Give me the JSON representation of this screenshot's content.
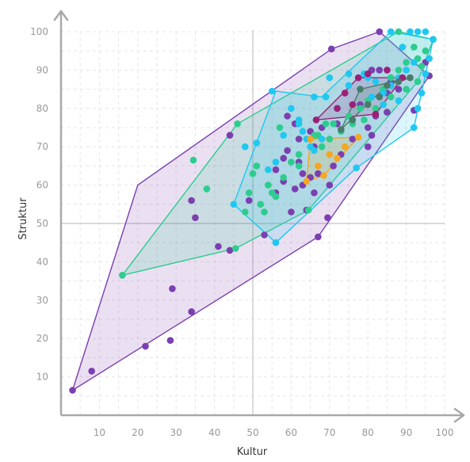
{
  "chart_data": {
    "type": "scatter",
    "title": "",
    "xlabel": "Kultur",
    "ylabel": "Struktur",
    "xlim": [
      0,
      100
    ],
    "ylim": [
      0,
      100
    ],
    "xticks": [
      10,
      20,
      30,
      40,
      50,
      60,
      70,
      80,
      90,
      100
    ],
    "yticks": [
      10,
      20,
      30,
      40,
      50,
      60,
      70,
      80,
      90,
      100
    ],
    "grid": true,
    "reference_lines": {
      "x": 50,
      "y": 50
    },
    "legend": "none",
    "series": [
      {
        "color": "#7b3fb0",
        "hull": [
          [
            3,
            6.5
          ],
          [
            67,
            46.5
          ],
          [
            96,
            88.5
          ],
          [
            83,
            100
          ],
          [
            70.5,
            95.5
          ],
          [
            20,
            60
          ]
        ],
        "points": [
          [
            3,
            6.5
          ],
          [
            8,
            11.5
          ],
          [
            22,
            18
          ],
          [
            28.5,
            19.5
          ],
          [
            34,
            27
          ],
          [
            29,
            33
          ],
          [
            34,
            56
          ],
          [
            35,
            51.5
          ],
          [
            41,
            44
          ],
          [
            44,
            43
          ],
          [
            44,
            73
          ],
          [
            53,
            47
          ],
          [
            67,
            46.5
          ],
          [
            69.5,
            51.5
          ],
          [
            64,
            53.5
          ],
          [
            60,
            53
          ],
          [
            56,
            58
          ],
          [
            56,
            64
          ],
          [
            58,
            67
          ],
          [
            59,
            69
          ],
          [
            62,
            72
          ],
          [
            65,
            74
          ],
          [
            61,
            76
          ],
          [
            59,
            78
          ],
          [
            63,
            60
          ],
          [
            66,
            58
          ],
          [
            70,
            60
          ],
          [
            71,
            65
          ],
          [
            73,
            68
          ],
          [
            76,
            72
          ],
          [
            80,
            70
          ],
          [
            81,
            73
          ],
          [
            85,
            79
          ],
          [
            92,
            79.5
          ],
          [
            96,
            88.5
          ],
          [
            95,
            92
          ],
          [
            86,
            87
          ],
          [
            78,
            81
          ],
          [
            72,
            76
          ],
          [
            68,
            75
          ],
          [
            66,
            70
          ],
          [
            62,
            66
          ],
          [
            65,
            62
          ],
          [
            67,
            63
          ],
          [
            70.5,
            95.5
          ],
          [
            83,
            100
          ],
          [
            88,
            85
          ],
          [
            83,
            90
          ],
          [
            81,
            90
          ],
          [
            85,
            84
          ],
          [
            80,
            75
          ],
          [
            82,
            78
          ],
          [
            63,
            63
          ],
          [
            49,
            56
          ],
          [
            58,
            61
          ],
          [
            61,
            59
          ]
        ]
      },
      {
        "color": "#2ecc8f",
        "hull": [
          [
            16,
            36.5
          ],
          [
            45.5,
            43.5
          ],
          [
            64.5,
            53.5
          ],
          [
            93,
            87
          ],
          [
            97,
            98
          ],
          [
            88,
            100
          ],
          [
            46,
            76
          ]
        ],
        "points": [
          [
            16,
            36.5
          ],
          [
            34.5,
            66.5
          ],
          [
            38,
            59
          ],
          [
            45.5,
            43.5
          ],
          [
            46,
            76
          ],
          [
            48,
            53
          ],
          [
            50,
            63
          ],
          [
            52,
            55
          ],
          [
            53,
            53
          ],
          [
            55,
            58
          ],
          [
            57,
            75
          ],
          [
            60,
            66
          ],
          [
            62,
            68
          ],
          [
            64.5,
            53.5
          ],
          [
            67,
            73
          ],
          [
            69,
            76
          ],
          [
            71,
            76
          ],
          [
            75,
            78
          ],
          [
            78,
            80
          ],
          [
            80,
            82
          ],
          [
            84,
            85
          ],
          [
            86,
            88
          ],
          [
            88,
            90
          ],
          [
            90,
            92
          ],
          [
            93,
            87
          ],
          [
            93,
            93
          ],
          [
            95,
            95
          ],
          [
            97,
            98
          ],
          [
            88,
            100
          ],
          [
            92,
            96
          ],
          [
            94,
            91
          ],
          [
            90,
            85
          ],
          [
            86,
            83
          ],
          [
            82,
            80
          ],
          [
            79,
            77
          ],
          [
            76,
            76
          ],
          [
            73,
            74
          ],
          [
            70,
            72
          ],
          [
            68,
            70
          ],
          [
            66,
            73
          ],
          [
            62,
            65
          ],
          [
            58,
            62
          ],
          [
            56,
            57
          ],
          [
            54,
            60
          ],
          [
            51,
            65
          ],
          [
            49,
            58
          ]
        ]
      },
      {
        "color": "#1fc8f0",
        "hull": [
          [
            45,
            55
          ],
          [
            56,
            45
          ],
          [
            77,
            64.5
          ],
          [
            92,
            75
          ],
          [
            97,
            98
          ],
          [
            86,
            100
          ],
          [
            68,
            83
          ],
          [
            56,
            84.5
          ]
        ],
        "points": [
          [
            45,
            55
          ],
          [
            48,
            70
          ],
          [
            51,
            71
          ],
          [
            56,
            45
          ],
          [
            55,
            84.5
          ],
          [
            60,
            80
          ],
          [
            62,
            77
          ],
          [
            63,
            74
          ],
          [
            64,
            72
          ],
          [
            65,
            70
          ],
          [
            66,
            69
          ],
          [
            68,
            72
          ],
          [
            69,
            83
          ],
          [
            72,
            80
          ],
          [
            75,
            86
          ],
          [
            77,
            64.5
          ],
          [
            79,
            89
          ],
          [
            80,
            88
          ],
          [
            82,
            87
          ],
          [
            84,
            84
          ],
          [
            86,
            86
          ],
          [
            88,
            88
          ],
          [
            90,
            90
          ],
          [
            92,
            75
          ],
          [
            93,
            80
          ],
          [
            94,
            84
          ],
          [
            95,
            89
          ],
          [
            96,
            93
          ],
          [
            97,
            98
          ],
          [
            95,
            100
          ],
          [
            93,
            100
          ],
          [
            91,
            100
          ],
          [
            86,
            100
          ],
          [
            89,
            96
          ],
          [
            92,
            92
          ],
          [
            88,
            82
          ],
          [
            84,
            81
          ],
          [
            81,
            83
          ],
          [
            78,
            85
          ],
          [
            75,
            89
          ],
          [
            70,
            88
          ],
          [
            66,
            83
          ],
          [
            62,
            76
          ],
          [
            58,
            73
          ],
          [
            56,
            66
          ],
          [
            54,
            64
          ]
        ]
      },
      {
        "color": "#f5a623",
        "hull": [
          [
            64,
            61
          ],
          [
            68.5,
            62.5
          ],
          [
            77.5,
            72.5
          ],
          [
            65,
            72
          ]
        ],
        "points": [
          [
            64,
            61
          ],
          [
            68.5,
            62.5
          ],
          [
            72,
            67
          ],
          [
            74,
            70
          ],
          [
            77.5,
            72.5
          ],
          [
            65,
            72
          ],
          [
            70,
            68
          ],
          [
            67,
            65
          ]
        ]
      },
      {
        "color": "#9c1f7a",
        "hull": [
          [
            66.5,
            77
          ],
          [
            82,
            78.5
          ],
          [
            89,
            88
          ],
          [
            77.5,
            88
          ]
        ],
        "points": [
          [
            66.5,
            77
          ],
          [
            72,
            80
          ],
          [
            76,
            81
          ],
          [
            82,
            78.5
          ],
          [
            89,
            88
          ],
          [
            85,
            90
          ],
          [
            80,
            89
          ],
          [
            77.5,
            88
          ],
          [
            74,
            84
          ]
        ]
      },
      {
        "color": "#4a7a6a",
        "hull": [
          [
            73,
            74.5
          ],
          [
            85,
            86
          ],
          [
            91,
            88
          ],
          [
            78,
            85
          ]
        ],
        "points": [
          [
            73,
            74.5
          ],
          [
            78,
            85
          ],
          [
            80,
            81
          ],
          [
            83,
            83
          ],
          [
            85,
            86
          ],
          [
            88,
            87
          ],
          [
            91,
            88
          ],
          [
            76,
            77
          ]
        ]
      }
    ]
  }
}
